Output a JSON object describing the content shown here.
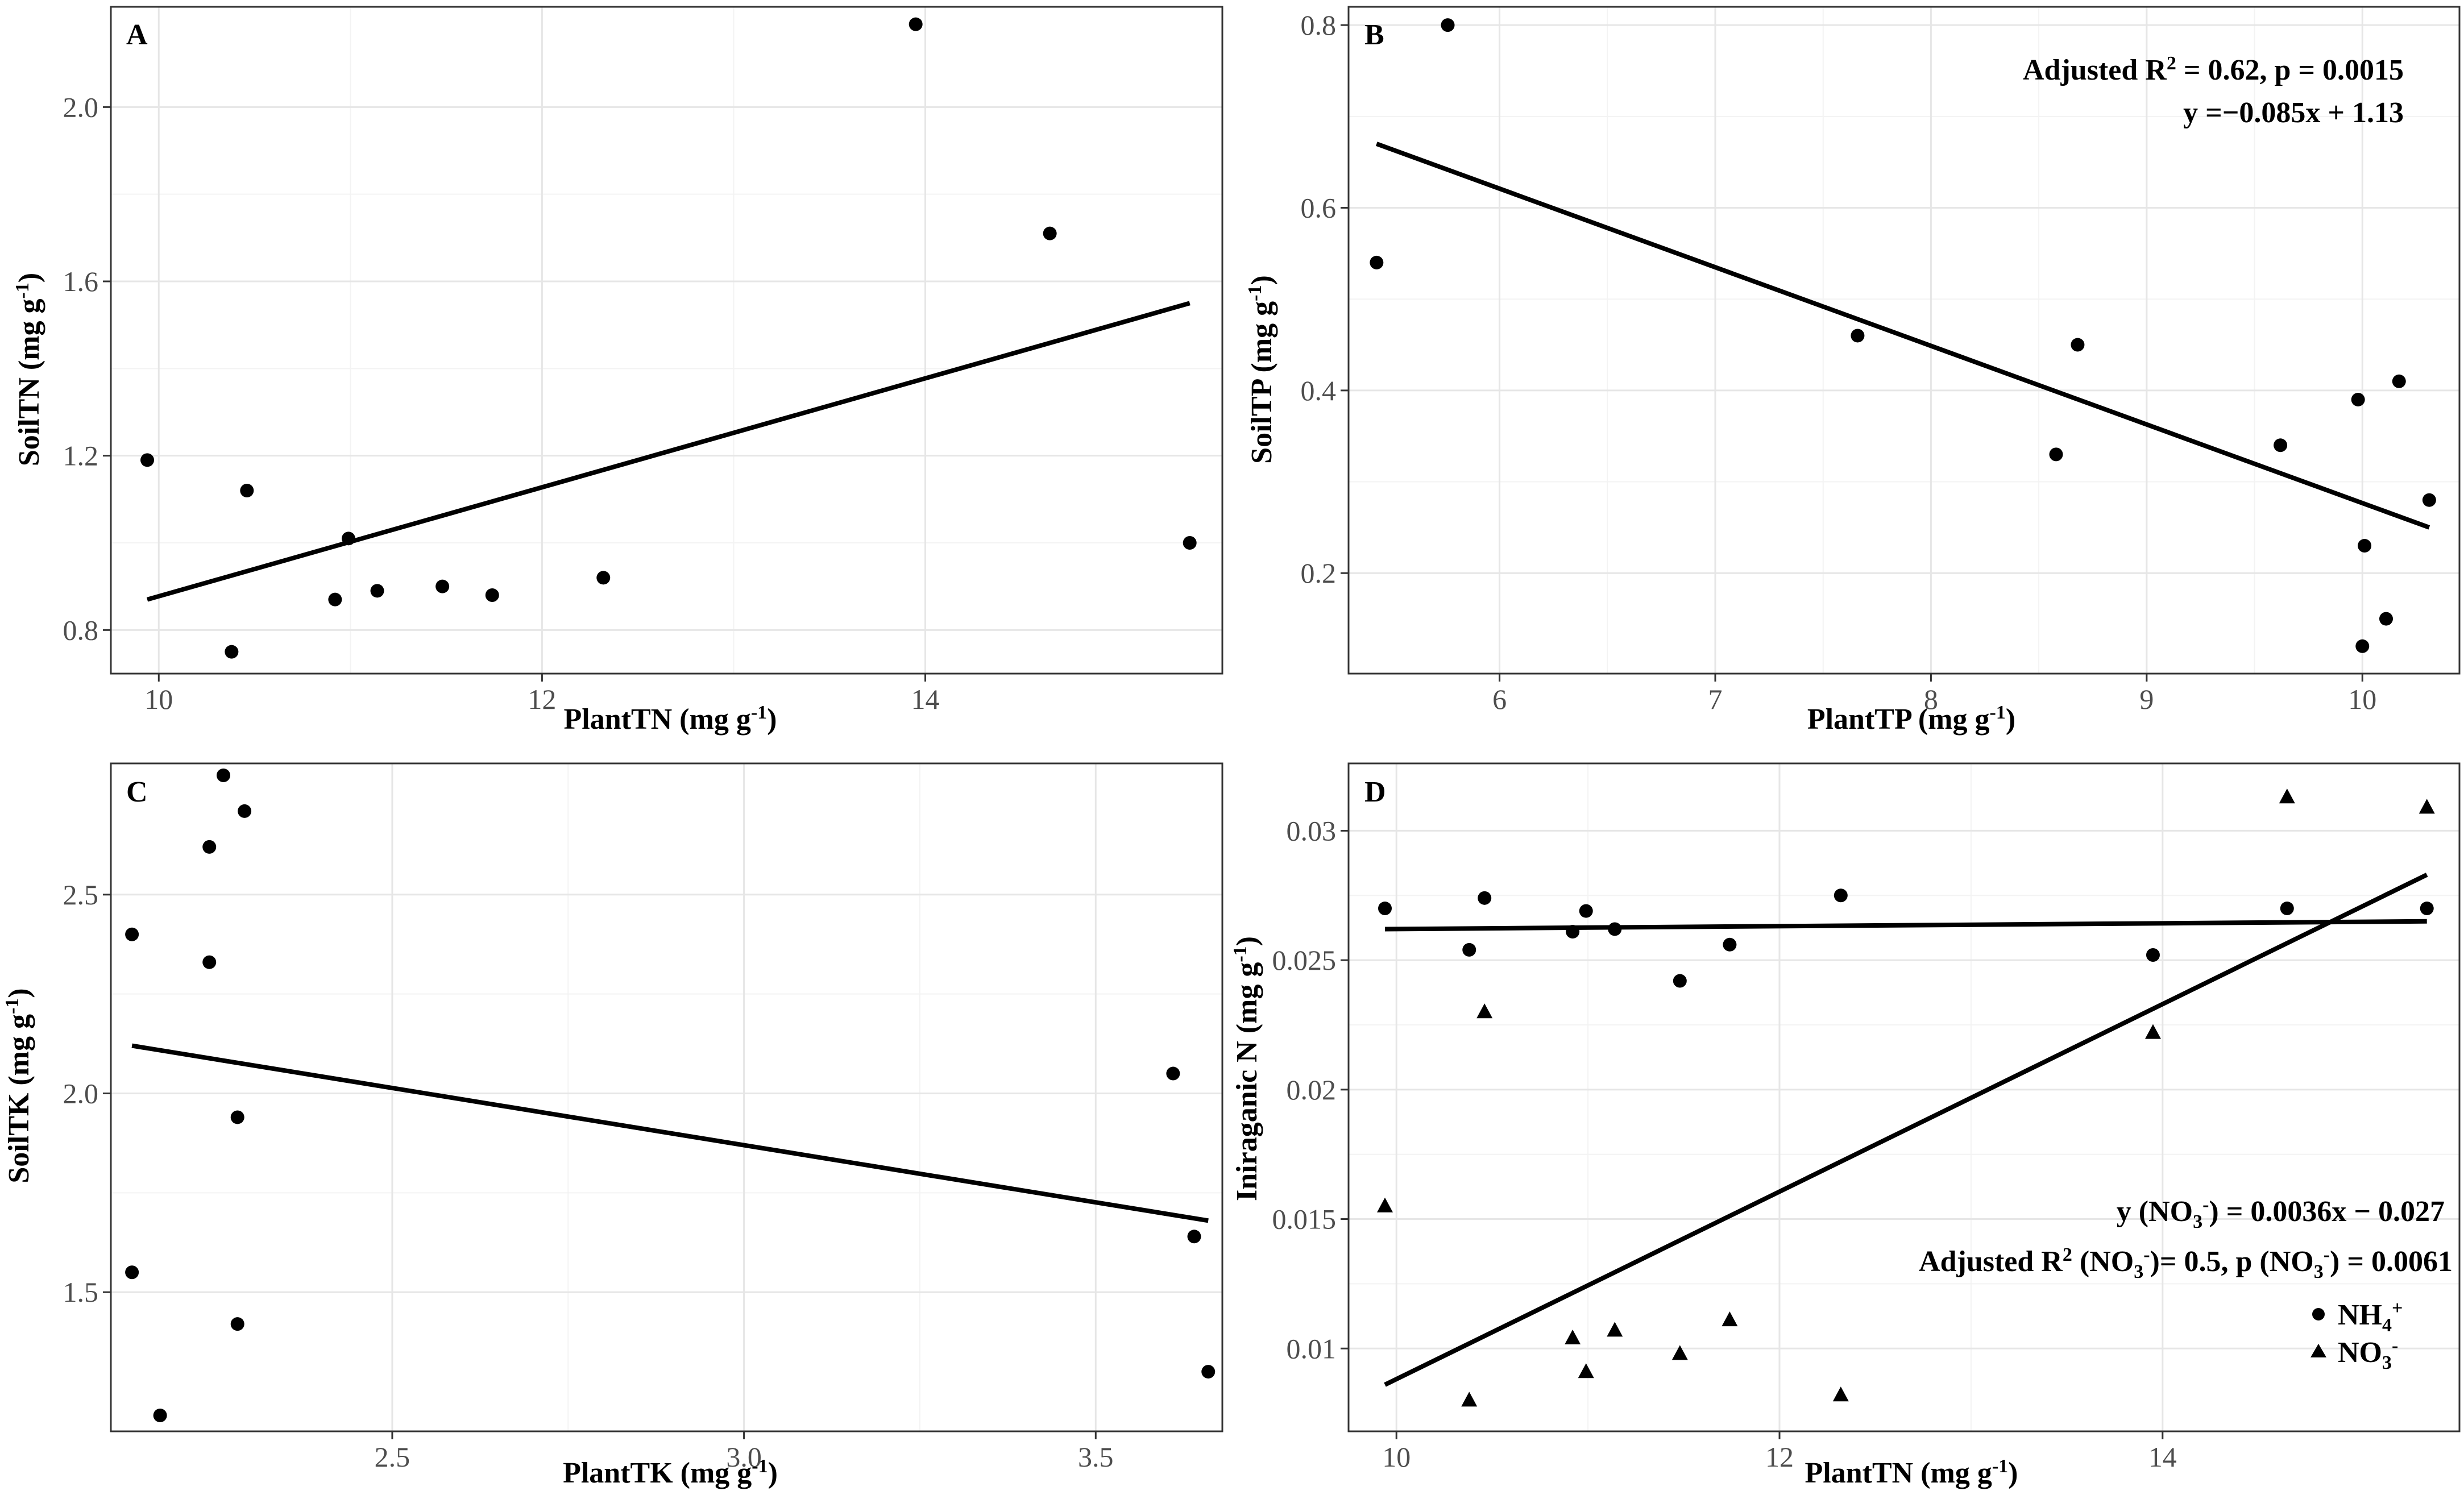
{
  "chart_data": [
    {
      "type": "scatter",
      "panel": "A",
      "xlabel": "PlantTN (mg g-1)",
      "ylabel": "SoilTN (mg g-1)",
      "xlim": [
        9.75,
        15.55
      ],
      "ylim": [
        0.7,
        2.23
      ],
      "xticks": [
        10,
        12,
        14
      ],
      "yticks": [
        0.8,
        1.2,
        1.6,
        2.0
      ],
      "xtick_labels": [
        "10",
        "12",
        "14"
      ],
      "ytick_labels": [
        "0.8",
        "1.2",
        "1.6",
        "2.0"
      ],
      "grid": true,
      "points": [
        [
          9.94,
          1.19
        ],
        [
          10.38,
          0.75
        ],
        [
          10.46,
          1.12
        ],
        [
          10.92,
          0.87
        ],
        [
          10.99,
          1.01
        ],
        [
          11.14,
          0.89
        ],
        [
          11.48,
          0.9
        ],
        [
          11.74,
          0.88
        ],
        [
          12.32,
          0.92
        ],
        [
          13.95,
          2.19
        ],
        [
          14.65,
          1.71
        ],
        [
          15.38,
          1.0
        ]
      ],
      "fit_line": [
        [
          9.94,
          0.87
        ],
        [
          15.38,
          1.55
        ]
      ],
      "annotations": []
    },
    {
      "type": "scatter",
      "panel": "B",
      "xlabel": "PlantTP (mg g-1)",
      "ylabel": "SoilTP (mg g-1)",
      "xlim": [
        5.3,
        10.45
      ],
      "ylim": [
        0.09,
        0.82
      ],
      "xticks": [
        6,
        7,
        8,
        9,
        10
      ],
      "yticks": [
        0.2,
        0.4,
        0.6,
        0.8
      ],
      "xtick_labels": [
        "6",
        "7",
        "8",
        "9",
        "10"
      ],
      "ytick_labels": [
        "0.2",
        "0.4",
        "0.6",
        "0.8"
      ],
      "grid": true,
      "points": [
        [
          5.43,
          0.54
        ],
        [
          5.76,
          0.8
        ],
        [
          7.66,
          0.46
        ],
        [
          8.58,
          0.33
        ],
        [
          8.68,
          0.45
        ],
        [
          9.62,
          0.34
        ],
        [
          9.98,
          0.39
        ],
        [
          10.01,
          0.23
        ],
        [
          10.0,
          0.12
        ],
        [
          10.11,
          0.15
        ],
        [
          10.17,
          0.41
        ],
        [
          10.31,
          0.28
        ]
      ],
      "fit_line": [
        [
          5.43,
          0.67
        ],
        [
          10.31,
          0.25
        ]
      ],
      "annotations": [
        "Adjusted R² = 0.62, p = 0.0015",
        "y =−0.085x + 1.13"
      ]
    },
    {
      "type": "scatter",
      "panel": "C",
      "xlabel": "PlantTK (mg g-1)",
      "ylabel": "SoilTK (mg g-1)",
      "xlim": [
        2.1,
        3.68
      ],
      "ylim": [
        1.15,
        2.83
      ],
      "xticks": [
        2.5,
        3.0,
        3.5
      ],
      "yticks": [
        1.5,
        2.0,
        2.5
      ],
      "xtick_labels": [
        "2.5",
        "3.0",
        "3.5"
      ],
      "ytick_labels": [
        "1.5",
        "2.0",
        "2.5"
      ],
      "grid": true,
      "points": [
        [
          2.13,
          2.4
        ],
        [
          2.13,
          1.55
        ],
        [
          2.17,
          1.19
        ],
        [
          2.24,
          2.62
        ],
        [
          2.24,
          2.33
        ],
        [
          2.26,
          2.8
        ],
        [
          2.28,
          1.94
        ],
        [
          2.28,
          1.42
        ],
        [
          2.29,
          2.71
        ],
        [
          3.61,
          2.05
        ],
        [
          3.64,
          1.64
        ],
        [
          3.66,
          1.3
        ]
      ],
      "fit_line": [
        [
          2.13,
          2.12
        ],
        [
          3.66,
          1.68
        ]
      ],
      "annotations": []
    },
    {
      "type": "scatter",
      "panel": "D",
      "xlabel": "PlantTN (mg g-1)",
      "ylabel": "Iniraganic N (mg g-1)",
      "xlim": [
        9.75,
        15.55
      ],
      "ylim": [
        0.0068,
        0.0326
      ],
      "xticks": [
        10,
        12,
        14
      ],
      "yticks": [
        0.01,
        0.015,
        0.02,
        0.025,
        0.03
      ],
      "xtick_labels": [
        "10",
        "12",
        "14"
      ],
      "ytick_labels": [
        "0.01",
        "0.015",
        "0.02",
        "0.025",
        "0.03"
      ],
      "grid": true,
      "series": [
        {
          "name": "NH4+",
          "marker": "circle",
          "points": [
            [
              9.94,
              0.027
            ],
            [
              10.38,
              0.0254
            ],
            [
              10.46,
              0.0274
            ],
            [
              10.92,
              0.0261
            ],
            [
              10.99,
              0.0269
            ],
            [
              11.14,
              0.0262
            ],
            [
              11.48,
              0.0242
            ],
            [
              11.74,
              0.0256
            ],
            [
              12.32,
              0.0275
            ],
            [
              13.95,
              0.0252
            ],
            [
              14.65,
              0.027
            ],
            [
              15.38,
              0.027
            ]
          ],
          "fit_line": [
            [
              9.94,
              0.0262
            ],
            [
              15.38,
              0.0265
            ]
          ]
        },
        {
          "name": "NO3-",
          "marker": "triangle",
          "points": [
            [
              9.94,
              0.0155
            ],
            [
              10.38,
              0.008
            ],
            [
              10.46,
              0.023
            ],
            [
              10.92,
              0.0104
            ],
            [
              10.99,
              0.0091
            ],
            [
              11.14,
              0.0107
            ],
            [
              11.48,
              0.0098
            ],
            [
              11.74,
              0.0111
            ],
            [
              12.32,
              0.0082
            ],
            [
              13.95,
              0.0222
            ],
            [
              14.65,
              0.0313
            ],
            [
              15.38,
              0.0309
            ]
          ],
          "fit_line": [
            [
              9.94,
              0.0086
            ],
            [
              15.38,
              0.0283
            ]
          ]
        }
      ],
      "annotations": [
        "y (NO3-) = 0.0036x − 0.027",
        "Adjusted R² (NO3-)= 0.5, p (NO3-) = 0.0061"
      ],
      "legend": {
        "position": "bottom-right",
        "labels": [
          "NH4+",
          "NO3-"
        ]
      }
    }
  ]
}
